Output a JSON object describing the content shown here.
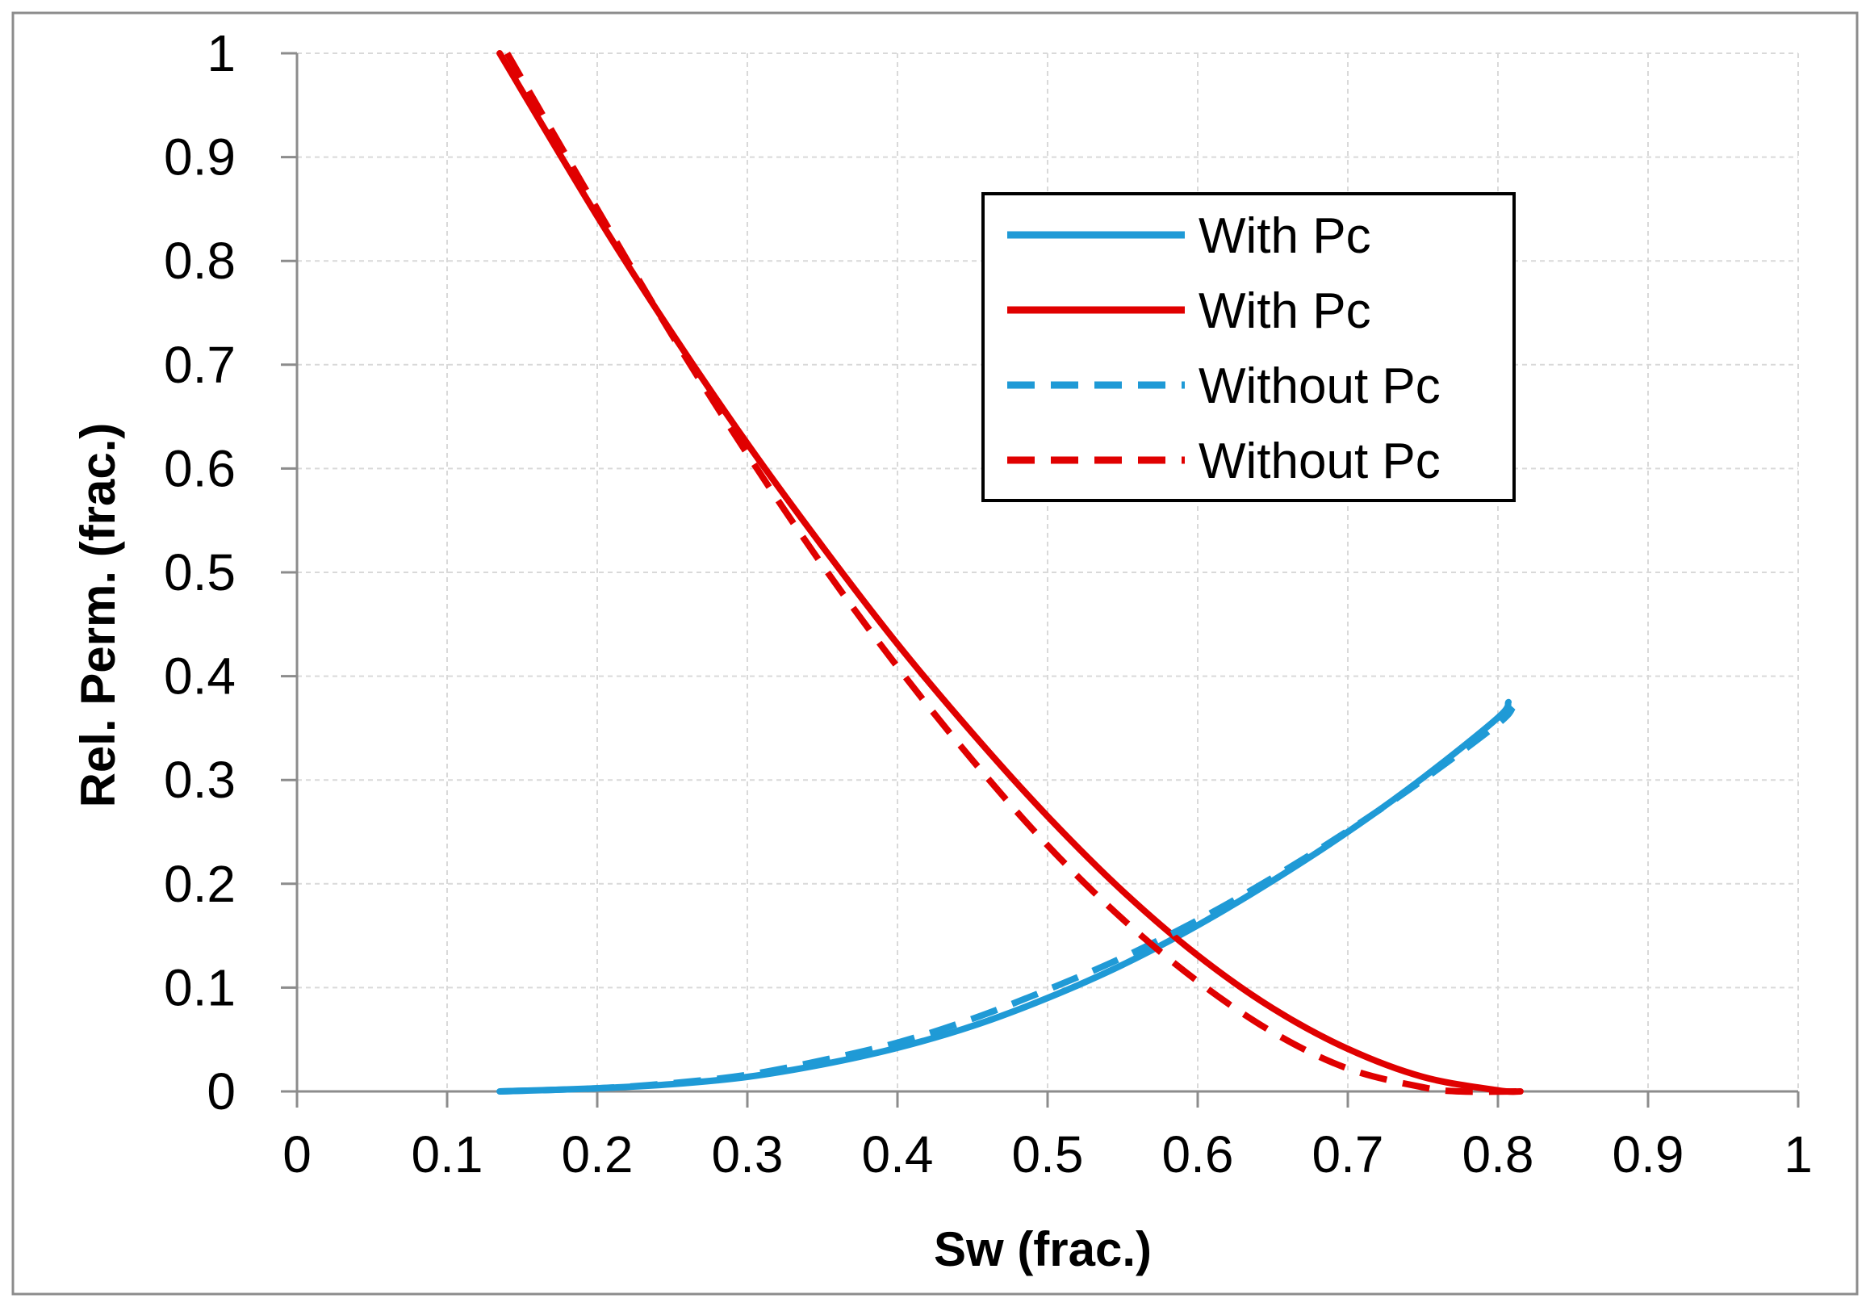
{
  "chart_data": {
    "type": "line",
    "title": "",
    "xlabel": "Sw (frac.)",
    "ylabel": "Rel. Perm. (frac.)",
    "xlim": [
      0,
      1
    ],
    "ylim": [
      0,
      1
    ],
    "x_ticks": [
      0,
      0.1,
      0.2,
      0.3,
      0.4,
      0.5,
      0.6,
      0.7,
      0.8,
      0.9,
      1
    ],
    "x_tick_labels": [
      "0",
      "0.1",
      "0.2",
      "0.3",
      "0.4",
      "0.5",
      "0.6",
      "0.7",
      "0.8",
      "0.9",
      "1"
    ],
    "y_ticks": [
      0,
      0.1,
      0.2,
      0.3,
      0.4,
      0.5,
      0.6,
      0.7,
      0.8,
      0.9,
      1
    ],
    "y_tick_labels": [
      "0",
      "0.1",
      "0.2",
      "0.3",
      "0.4",
      "0.5",
      "0.6",
      "0.7",
      "0.8",
      "0.9",
      "1"
    ],
    "grid": true,
    "legend_position": "top-right",
    "series": [
      {
        "name": "With Pc",
        "color": "#1f9ad6",
        "style": "solid",
        "x": [
          0.135,
          0.2,
          0.25,
          0.3,
          0.35,
          0.4,
          0.45,
          0.5,
          0.55,
          0.6,
          0.65,
          0.7,
          0.75,
          0.8,
          0.807
        ],
        "y": [
          0.0,
          0.003,
          0.007,
          0.014,
          0.026,
          0.042,
          0.063,
          0.09,
          0.122,
          0.16,
          0.203,
          0.25,
          0.302,
          0.36,
          0.375
        ]
      },
      {
        "name": "With Pc",
        "color": "#e00000",
        "style": "solid",
        "x": [
          0.135,
          0.2,
          0.25,
          0.3,
          0.35,
          0.4,
          0.45,
          0.5,
          0.55,
          0.6,
          0.65,
          0.7,
          0.75,
          0.8,
          0.815
        ],
        "y": [
          1.0,
          0.843,
          0.73,
          0.624,
          0.525,
          0.431,
          0.345,
          0.265,
          0.193,
          0.131,
          0.08,
          0.041,
          0.014,
          0.001,
          0.0
        ]
      },
      {
        "name": "Without Pc",
        "color": "#1f9ad6",
        "style": "dashed",
        "x": [
          0.135,
          0.2,
          0.25,
          0.3,
          0.35,
          0.4,
          0.45,
          0.5,
          0.55,
          0.6,
          0.65,
          0.7,
          0.75,
          0.8,
          0.81
        ],
        "y": [
          0.0,
          0.003,
          0.008,
          0.016,
          0.03,
          0.047,
          0.07,
          0.098,
          0.129,
          0.165,
          0.206,
          0.251,
          0.3,
          0.354,
          0.37
        ]
      },
      {
        "name": "Without Pc",
        "color": "#e00000",
        "style": "dashed",
        "x": [
          0.14,
          0.2,
          0.25,
          0.3,
          0.35,
          0.4,
          0.45,
          0.5,
          0.55,
          0.6,
          0.65,
          0.7,
          0.75,
          0.775,
          0.815
        ],
        "y": [
          1.0,
          0.85,
          0.728,
          0.614,
          0.507,
          0.409,
          0.319,
          0.237,
          0.166,
          0.106,
          0.057,
          0.022,
          0.004,
          0.0,
          0.0
        ]
      }
    ]
  }
}
